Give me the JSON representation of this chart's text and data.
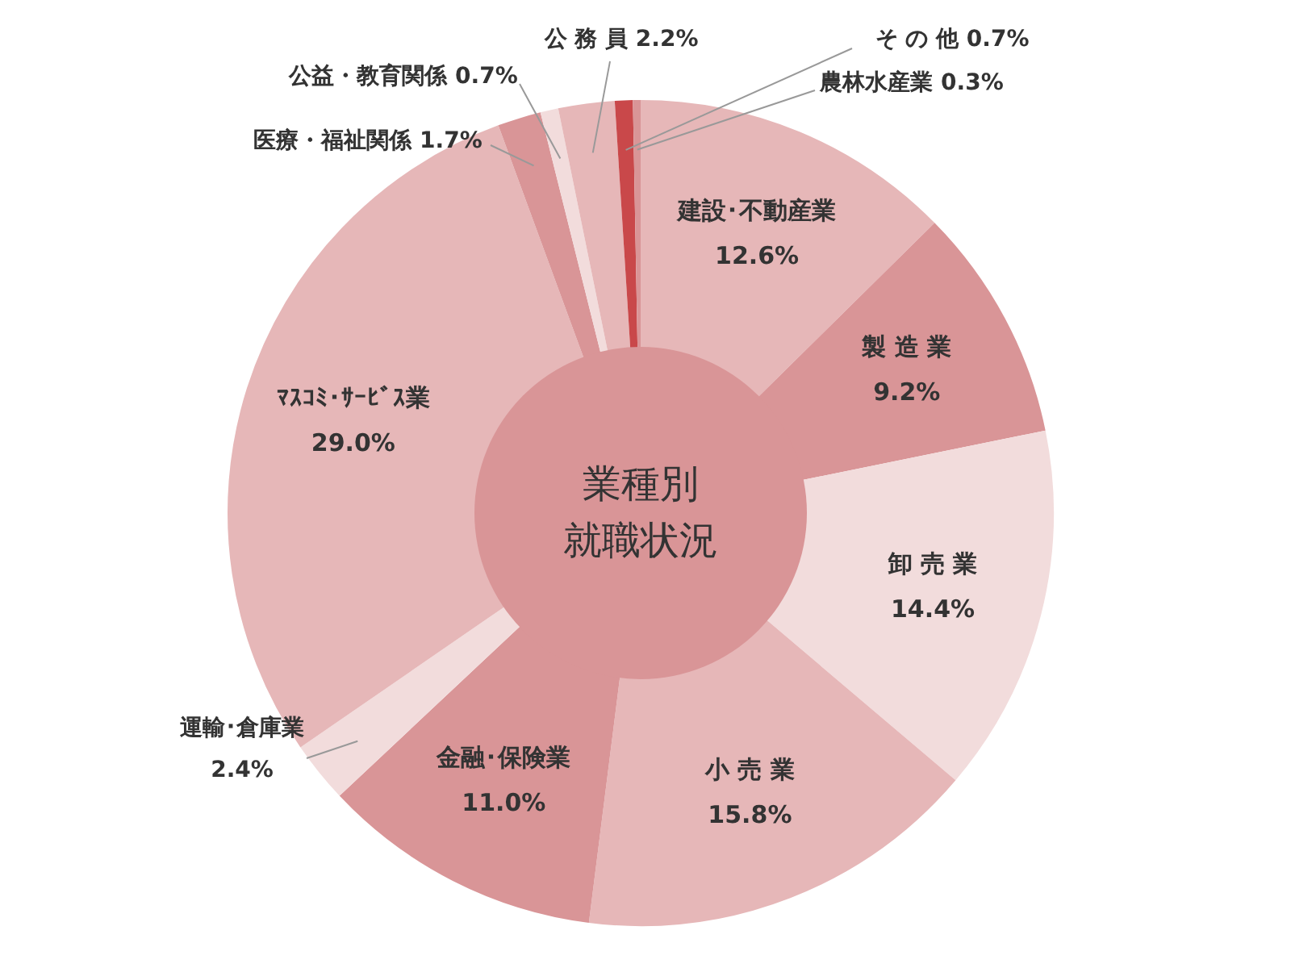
{
  "chart_data": {
    "type": "donut",
    "title": "業種別就職状況",
    "categories": [
      "建設･不動産業",
      "製 造 業",
      "卸 売 業",
      "小 売 業",
      "金融･保険業",
      "運輸･倉庫業",
      "ﾏｽｺﾐ･ｻｰﾋﾞｽ業",
      "医療・福祉関係",
      "公益・教育関係",
      "公 務 員",
      "そ の 他",
      "農林水産業"
    ],
    "values": [
      12.6,
      9.2,
      14.4,
      15.8,
      11.0,
      2.4,
      29.0,
      1.7,
      0.7,
      2.2,
      0.7,
      0.3
    ],
    "value_labels": [
      "12.6%",
      "9.2%",
      "14.4%",
      "15.8%",
      "11.0%",
      "2.4%",
      "29.0%",
      "1.7%",
      "0.7%",
      "2.2%",
      "0.7%",
      "0.3%"
    ],
    "colors": [
      "#e6b7b8",
      "#d99597",
      "#f2dcdc",
      "#e6b7b8",
      "#d99597",
      "#f2dcdc",
      "#e6b7b8",
      "#d99597",
      "#f2dcdc",
      "#e6b7b8",
      "#c9484a",
      "#d99597"
    ],
    "legend": false
  }
}
